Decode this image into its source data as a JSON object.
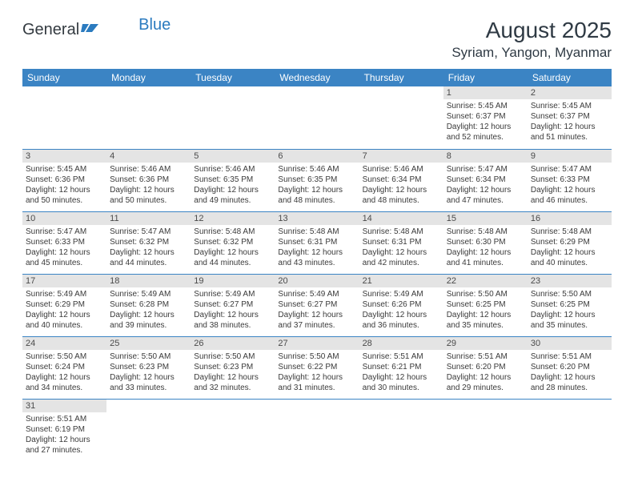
{
  "logo": {
    "part1": "General",
    "part2": "Blue"
  },
  "title": "August 2025",
  "location": "Syriam, Yangon, Myanmar",
  "headers": [
    "Sunday",
    "Monday",
    "Tuesday",
    "Wednesday",
    "Thursday",
    "Friday",
    "Saturday"
  ],
  "colors": {
    "header_bg": "#3b84c4",
    "header_text": "#ffffff",
    "daynum_bg": "#e4e4e4",
    "row_border": "#3b84c4",
    "logo_text": "#333a40",
    "logo_blue": "#2b7bbf",
    "body_text": "#3a3a3a"
  },
  "weeks": [
    [
      null,
      null,
      null,
      null,
      null,
      {
        "d": "1",
        "sr": "5:45 AM",
        "ss": "6:37 PM",
        "dl": "12 hours and 52 minutes."
      },
      {
        "d": "2",
        "sr": "5:45 AM",
        "ss": "6:37 PM",
        "dl": "12 hours and 51 minutes."
      }
    ],
    [
      {
        "d": "3",
        "sr": "5:45 AM",
        "ss": "6:36 PM",
        "dl": "12 hours and 50 minutes."
      },
      {
        "d": "4",
        "sr": "5:46 AM",
        "ss": "6:36 PM",
        "dl": "12 hours and 50 minutes."
      },
      {
        "d": "5",
        "sr": "5:46 AM",
        "ss": "6:35 PM",
        "dl": "12 hours and 49 minutes."
      },
      {
        "d": "6",
        "sr": "5:46 AM",
        "ss": "6:35 PM",
        "dl": "12 hours and 48 minutes."
      },
      {
        "d": "7",
        "sr": "5:46 AM",
        "ss": "6:34 PM",
        "dl": "12 hours and 48 minutes."
      },
      {
        "d": "8",
        "sr": "5:47 AM",
        "ss": "6:34 PM",
        "dl": "12 hours and 47 minutes."
      },
      {
        "d": "9",
        "sr": "5:47 AM",
        "ss": "6:33 PM",
        "dl": "12 hours and 46 minutes."
      }
    ],
    [
      {
        "d": "10",
        "sr": "5:47 AM",
        "ss": "6:33 PM",
        "dl": "12 hours and 45 minutes."
      },
      {
        "d": "11",
        "sr": "5:47 AM",
        "ss": "6:32 PM",
        "dl": "12 hours and 44 minutes."
      },
      {
        "d": "12",
        "sr": "5:48 AM",
        "ss": "6:32 PM",
        "dl": "12 hours and 44 minutes."
      },
      {
        "d": "13",
        "sr": "5:48 AM",
        "ss": "6:31 PM",
        "dl": "12 hours and 43 minutes."
      },
      {
        "d": "14",
        "sr": "5:48 AM",
        "ss": "6:31 PM",
        "dl": "12 hours and 42 minutes."
      },
      {
        "d": "15",
        "sr": "5:48 AM",
        "ss": "6:30 PM",
        "dl": "12 hours and 41 minutes."
      },
      {
        "d": "16",
        "sr": "5:48 AM",
        "ss": "6:29 PM",
        "dl": "12 hours and 40 minutes."
      }
    ],
    [
      {
        "d": "17",
        "sr": "5:49 AM",
        "ss": "6:29 PM",
        "dl": "12 hours and 40 minutes."
      },
      {
        "d": "18",
        "sr": "5:49 AM",
        "ss": "6:28 PM",
        "dl": "12 hours and 39 minutes."
      },
      {
        "d": "19",
        "sr": "5:49 AM",
        "ss": "6:27 PM",
        "dl": "12 hours and 38 minutes."
      },
      {
        "d": "20",
        "sr": "5:49 AM",
        "ss": "6:27 PM",
        "dl": "12 hours and 37 minutes."
      },
      {
        "d": "21",
        "sr": "5:49 AM",
        "ss": "6:26 PM",
        "dl": "12 hours and 36 minutes."
      },
      {
        "d": "22",
        "sr": "5:50 AM",
        "ss": "6:25 PM",
        "dl": "12 hours and 35 minutes."
      },
      {
        "d": "23",
        "sr": "5:50 AM",
        "ss": "6:25 PM",
        "dl": "12 hours and 35 minutes."
      }
    ],
    [
      {
        "d": "24",
        "sr": "5:50 AM",
        "ss": "6:24 PM",
        "dl": "12 hours and 34 minutes."
      },
      {
        "d": "25",
        "sr": "5:50 AM",
        "ss": "6:23 PM",
        "dl": "12 hours and 33 minutes."
      },
      {
        "d": "26",
        "sr": "5:50 AM",
        "ss": "6:23 PM",
        "dl": "12 hours and 32 minutes."
      },
      {
        "d": "27",
        "sr": "5:50 AM",
        "ss": "6:22 PM",
        "dl": "12 hours and 31 minutes."
      },
      {
        "d": "28",
        "sr": "5:51 AM",
        "ss": "6:21 PM",
        "dl": "12 hours and 30 minutes."
      },
      {
        "d": "29",
        "sr": "5:51 AM",
        "ss": "6:20 PM",
        "dl": "12 hours and 29 minutes."
      },
      {
        "d": "30",
        "sr": "5:51 AM",
        "ss": "6:20 PM",
        "dl": "12 hours and 28 minutes."
      }
    ],
    [
      {
        "d": "31",
        "sr": "5:51 AM",
        "ss": "6:19 PM",
        "dl": "12 hours and 27 minutes."
      },
      null,
      null,
      null,
      null,
      null,
      null
    ]
  ],
  "labels": {
    "sunrise": "Sunrise: ",
    "sunset": "Sunset: ",
    "daylight": "Daylight: "
  }
}
